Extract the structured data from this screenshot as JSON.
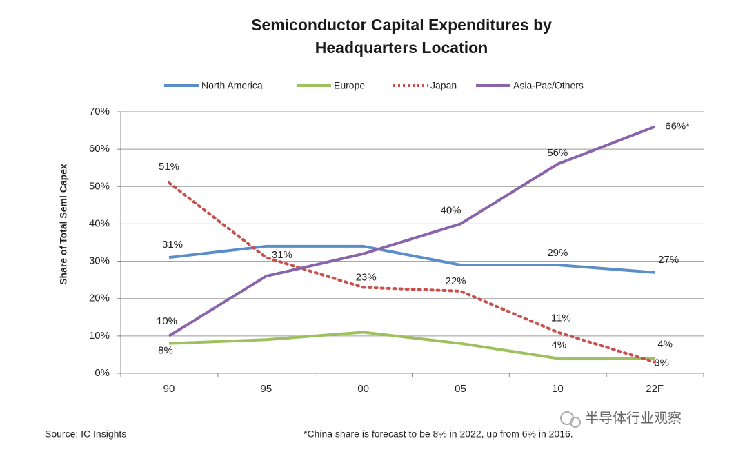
{
  "chart_data": {
    "type": "line",
    "title": [
      "Semiconductor Capital Expenditures by",
      "Headquarters Location"
    ],
    "y_label": "Share of Total Semi Capex",
    "categories": [
      "90",
      "95",
      "00",
      "05",
      "10",
      "22F"
    ],
    "series": [
      {
        "name": "North America",
        "color": "#5b8ec8",
        "style": "solid",
        "values": [
          31,
          34,
          34,
          29,
          29,
          27
        ],
        "value_labels": [
          "31%",
          null,
          null,
          null,
          "29%",
          "27%"
        ]
      },
      {
        "name": "Europe",
        "color": "#9cc15e",
        "style": "solid",
        "values": [
          8,
          9,
          11,
          8,
          4,
          4
        ],
        "value_labels": [
          "8%",
          null,
          null,
          null,
          "4%",
          "4%"
        ]
      },
      {
        "name": "Japan",
        "color": "#c9504c",
        "style": "dotted",
        "values": [
          51,
          31,
          23,
          22,
          11,
          3
        ],
        "value_labels": [
          "51%",
          "31%",
          "23%",
          "22%",
          "11%",
          "3%"
        ]
      },
      {
        "name": "Asia-Pac/Others",
        "color": "#8a64aa",
        "style": "solid",
        "values": [
          10,
          26,
          32,
          40,
          56,
          66
        ],
        "value_labels": [
          "10%",
          null,
          null,
          "40%",
          "56%",
          "66%*"
        ]
      }
    ],
    "ylim": [
      0,
      70
    ],
    "yticks": [
      {
        "value": 0,
        "label": "0%"
      },
      {
        "value": 10,
        "label": "10%"
      },
      {
        "value": 20,
        "label": "20%"
      },
      {
        "value": 30,
        "label": "30%"
      },
      {
        "value": 40,
        "label": "40%"
      },
      {
        "value": 50,
        "label": "50%"
      },
      {
        "value": 60,
        "label": "60%"
      },
      {
        "value": 70,
        "label": "70%"
      }
    ],
    "grid": true,
    "legend": "top",
    "source": "Source:  IC Insights",
    "note": "*China share is forecast to be 8% in 2022, up from 6% in 2016.",
    "watermark": "半导体行业观察"
  }
}
